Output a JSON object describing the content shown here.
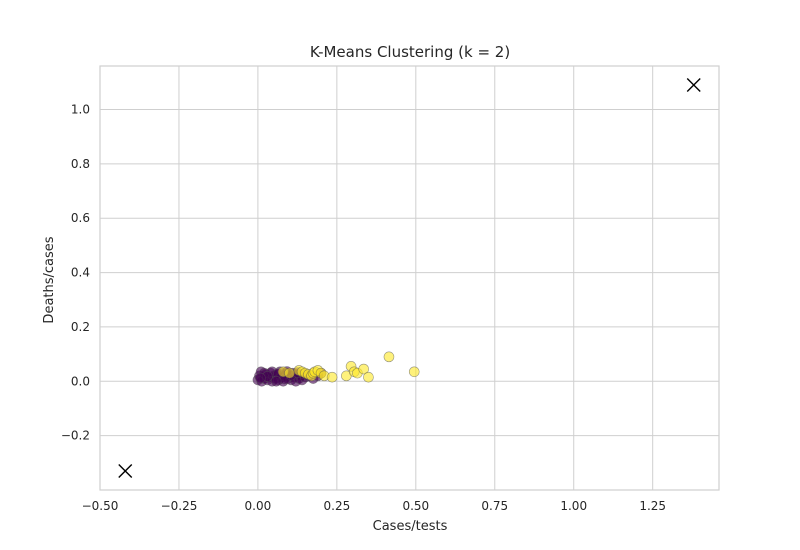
{
  "chart_data": {
    "type": "scatter",
    "title": "K-Means Clustering (k = 2)",
    "xlabel": "Cases/tests",
    "ylabel": "Deaths/cases",
    "xlim": [
      -0.5,
      1.46
    ],
    "ylim": [
      -0.4,
      1.16
    ],
    "grid": true,
    "xticks": [
      "−0.50",
      "−0.25",
      "0.00",
      "0.25",
      "0.50",
      "0.75",
      "1.00",
      "1.25"
    ],
    "xtick_values": [
      -0.5,
      -0.25,
      0.0,
      0.25,
      0.5,
      0.75,
      1.0,
      1.25
    ],
    "yticks": [
      "−0.2",
      "0.0",
      "0.2",
      "0.4",
      "0.6",
      "0.8",
      "1.0"
    ],
    "ytick_values": [
      -0.2,
      0.0,
      0.2,
      0.4,
      0.6,
      0.8,
      1.0
    ],
    "series": [
      {
        "color": "#440154",
        "points": [
          [
            0.0,
            0.005
          ],
          [
            0.005,
            0.02
          ],
          [
            0.01,
            0.035
          ],
          [
            0.012,
            0.0
          ],
          [
            0.02,
            0.01
          ],
          [
            0.025,
            0.025
          ],
          [
            0.03,
            0.005
          ],
          [
            0.035,
            0.015
          ],
          [
            0.04,
            0.03
          ],
          [
            0.045,
            0.0
          ],
          [
            0.05,
            0.02
          ],
          [
            0.055,
            0.01
          ],
          [
            0.06,
            0.025
          ],
          [
            0.065,
            0.005
          ],
          [
            0.07,
            0.035
          ],
          [
            0.075,
            0.015
          ],
          [
            0.08,
            0.0
          ],
          [
            0.085,
            0.02
          ],
          [
            0.09,
            0.03
          ],
          [
            0.095,
            0.01
          ],
          [
            0.1,
            0.02
          ],
          [
            0.105,
            0.005
          ],
          [
            0.11,
            0.03
          ],
          [
            0.115,
            0.015
          ],
          [
            0.12,
            0.0
          ],
          [
            0.125,
            0.025
          ],
          [
            0.13,
            0.01
          ],
          [
            0.135,
            0.02
          ],
          [
            0.14,
            0.005
          ],
          [
            0.15,
            0.015
          ],
          [
            0.16,
            0.02
          ],
          [
            0.02,
            0.03
          ],
          [
            0.045,
            0.035
          ],
          [
            0.065,
            0.028
          ],
          [
            0.085,
            0.008
          ],
          [
            0.105,
            0.022
          ],
          [
            0.125,
            0.032
          ],
          [
            0.03,
            0.018
          ],
          [
            0.058,
            0.0
          ],
          [
            0.092,
            0.036
          ],
          [
            0.145,
            0.028
          ],
          [
            0.175,
            0.01
          ],
          [
            0.19,
            0.02
          ],
          [
            0.2,
            0.03
          ],
          [
            0.008,
            0.012
          ]
        ]
      },
      {
        "color": "#fde725",
        "points": [
          [
            0.08,
            0.035
          ],
          [
            0.1,
            0.03
          ],
          [
            0.13,
            0.04
          ],
          [
            0.14,
            0.035
          ],
          [
            0.15,
            0.03
          ],
          [
            0.16,
            0.025
          ],
          [
            0.17,
            0.02
          ],
          [
            0.175,
            0.03
          ],
          [
            0.18,
            0.035
          ],
          [
            0.19,
            0.04
          ],
          [
            0.2,
            0.03
          ],
          [
            0.21,
            0.02
          ],
          [
            0.235,
            0.015
          ],
          [
            0.28,
            0.02
          ],
          [
            0.295,
            0.055
          ],
          [
            0.305,
            0.035
          ],
          [
            0.315,
            0.03
          ],
          [
            0.335,
            0.045
          ],
          [
            0.35,
            0.015
          ],
          [
            0.415,
            0.09
          ],
          [
            0.495,
            0.035
          ]
        ]
      }
    ],
    "centroids": [
      [
        1.38,
        1.09
      ],
      [
        -0.42,
        -0.33
      ]
    ]
  }
}
